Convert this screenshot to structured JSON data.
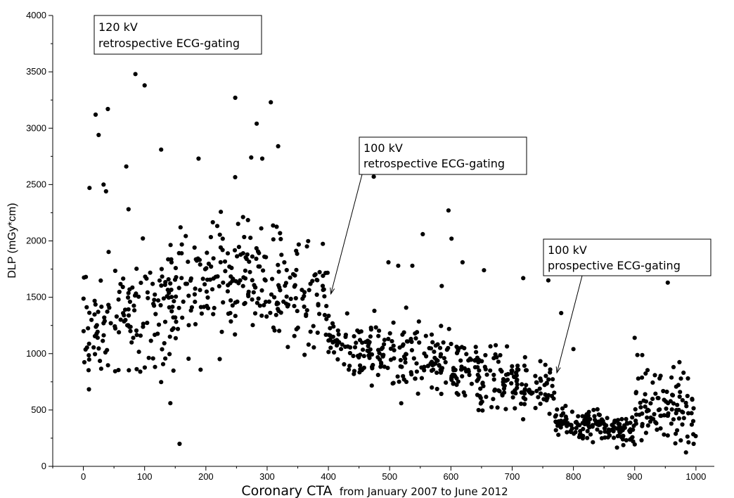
{
  "chart_data": {
    "type": "scatter",
    "xlabel": "Coronary CTA",
    "xlabel_suffix": "from January 2007 to June 2012",
    "ylabel": "DLP (mGy*cm)",
    "xlim": [
      -50,
      1030
    ],
    "ylim": [
      0,
      4000
    ],
    "xticks": [
      0,
      100,
      200,
      300,
      400,
      500,
      600,
      700,
      800,
      900,
      1000
    ],
    "yticks": [
      0,
      500,
      1000,
      1500,
      2000,
      2500,
      3000,
      3500,
      4000
    ],
    "grid": false,
    "annotations": [
      {
        "lines": [
          "120 kV",
          "retrospective ECG-gating"
        ]
      },
      {
        "lines": [
          "100 kV",
          "retrospective ECG-gating"
        ],
        "arrow_to": [
          404,
          1530
        ]
      },
      {
        "lines": [
          "100 kV",
          "prospective ECG-gating"
        ],
        "arrow_to": [
          773,
          830
        ]
      }
    ],
    "outliers": [
      [
        20,
        3120
      ],
      [
        25,
        2940
      ],
      [
        40,
        3170
      ],
      [
        85,
        3480
      ],
      [
        100,
        3380
      ],
      [
        127,
        2810
      ],
      [
        248,
        3270
      ],
      [
        283,
        3040
      ],
      [
        306,
        3230
      ],
      [
        318,
        2840
      ],
      [
        188,
        2730
      ],
      [
        274,
        2740
      ],
      [
        292,
        2730
      ],
      [
        70,
        2660
      ],
      [
        10,
        2470
      ],
      [
        33,
        2500
      ],
      [
        37,
        2440
      ],
      [
        157,
        200
      ],
      [
        474,
        2570
      ],
      [
        596,
        2270
      ],
      [
        601,
        2020
      ],
      [
        554,
        2060
      ],
      [
        514,
        1780
      ],
      [
        537,
        1780
      ],
      [
        619,
        1810
      ],
      [
        654,
        1740
      ],
      [
        718,
        1670
      ],
      [
        759,
        1650
      ],
      [
        954,
        1630
      ],
      [
        780,
        1360
      ],
      [
        900,
        1140
      ],
      [
        800,
        1040
      ],
      [
        585,
        1600
      ],
      [
        498,
        1810
      ]
    ],
    "segments": [
      {
        "x": [
          0,
          400
        ],
        "points": 400,
        "start_mean": 1180,
        "end_mean": 1480,
        "peak_x": 260,
        "peak_mean": 1700,
        "spread": 380
      },
      {
        "x": [
          400,
          770
        ],
        "points": 380,
        "start_mean": 1100,
        "end_mean": 700,
        "spread": 200
      },
      {
        "x": [
          770,
          900
        ],
        "points": 150,
        "start_mean": 400,
        "end_mean": 320,
        "spread": 90
      },
      {
        "x": [
          900,
          1000
        ],
        "points": 110,
        "start_mean": 560,
        "end_mean": 480,
        "spread": 230
      }
    ],
    "marker_color": "#000000"
  }
}
